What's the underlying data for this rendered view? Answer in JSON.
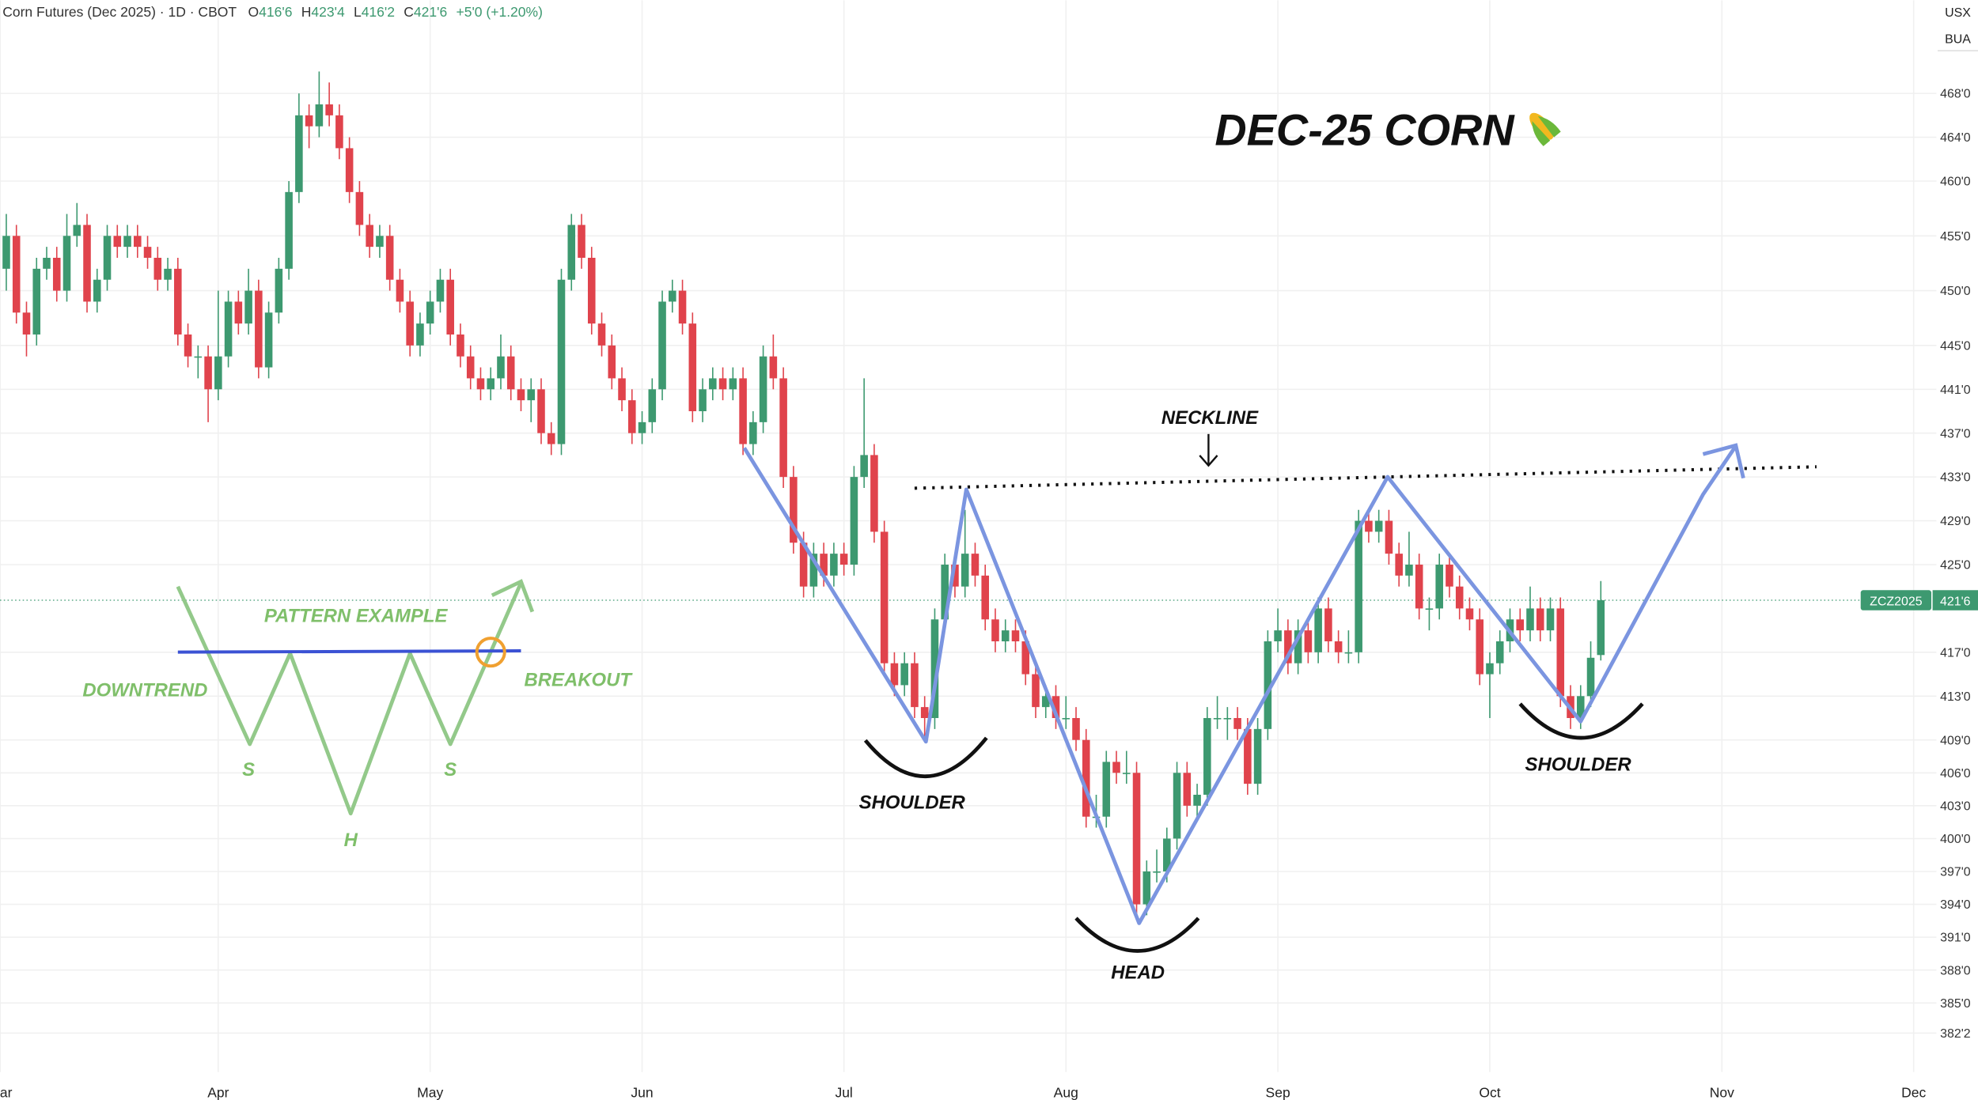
{
  "header": {
    "symbol": "Corn Futures (Dec 2025) · 1D · CBOT",
    "ohlc": [
      {
        "key": "O",
        "value": "416'6"
      },
      {
        "key": "H",
        "value": "423'4"
      },
      {
        "key": "L",
        "value": "416'2"
      },
      {
        "key": "C",
        "value": "421'6"
      }
    ],
    "change": "+5'0 (+1.20%)"
  },
  "axis_corner": {
    "currency": "USX",
    "unit": "BUA"
  },
  "price_tag": {
    "symbol": "ZCZ2025",
    "price": "421'6",
    "value": 421.75
  },
  "annotations": {
    "title": "DEC-25 CORN",
    "neckline": "NECKLINE",
    "left_shoulder": "SHOULDER",
    "head": "HEAD",
    "right_shoulder": "SHOULDER",
    "example": {
      "title": "PATTERN EXAMPLE",
      "downtrend": "DOWNTREND",
      "breakout": "BREAKOUT",
      "s1": "S",
      "h": "H",
      "s2": "S"
    }
  },
  "chart_data": {
    "type": "candlestick",
    "up_color": "#3d9970",
    "down_color": "#e0434c",
    "grid": true,
    "xlim": [
      -0.625,
      191.25
    ],
    "xticks": [
      {
        "value": -0.6,
        "label": "Mar"
      },
      {
        "value": 21,
        "label": "Apr"
      },
      {
        "value": 42,
        "label": "May"
      },
      {
        "value": 63,
        "label": "Jun"
      },
      {
        "value": 83,
        "label": "Jul"
      },
      {
        "value": 105,
        "label": "Aug"
      },
      {
        "value": 126,
        "label": "Sep"
      },
      {
        "value": 147,
        "label": "Oct"
      },
      {
        "value": 170,
        "label": "Nov"
      },
      {
        "value": 189,
        "label": "Dec"
      }
    ],
    "ylim": [
      378.7,
      476.5
    ],
    "yticks": [
      {
        "value": 468,
        "label": "468'0"
      },
      {
        "value": 464,
        "label": "464'0"
      },
      {
        "value": 460,
        "label": "460'0"
      },
      {
        "value": 455,
        "label": "455'0"
      },
      {
        "value": 450,
        "label": "450'0"
      },
      {
        "value": 445,
        "label": "445'0"
      },
      {
        "value": 441,
        "label": "441'0"
      },
      {
        "value": 437,
        "label": "437'0"
      },
      {
        "value": 433,
        "label": "433'0"
      },
      {
        "value": 429,
        "label": "429'0"
      },
      {
        "value": 425,
        "label": "425'0"
      },
      {
        "value": 417,
        "label": "417'0"
      },
      {
        "value": 413,
        "label": "413'0"
      },
      {
        "value": 409,
        "label": "409'0"
      },
      {
        "value": 406,
        "label": "406'0"
      },
      {
        "value": 403,
        "label": "403'0"
      },
      {
        "value": 400,
        "label": "400'0"
      },
      {
        "value": 397,
        "label": "397'0"
      },
      {
        "value": 394,
        "label": "394'0"
      },
      {
        "value": 391,
        "label": "391'0"
      },
      {
        "value": 388,
        "label": "388'0"
      },
      {
        "value": 385,
        "label": "385'0"
      },
      {
        "value": 382.25,
        "label": "382'2"
      }
    ],
    "candles": [
      [
        452,
        457,
        450,
        455
      ],
      [
        455,
        456,
        447,
        448
      ],
      [
        448,
        449,
        444,
        446
      ],
      [
        446,
        453,
        445,
        452
      ],
      [
        452,
        454,
        451,
        453
      ],
      [
        453,
        454,
        449,
        450
      ],
      [
        450,
        457,
        449,
        455
      ],
      [
        455,
        458,
        454,
        456
      ],
      [
        456,
        457,
        448,
        449
      ],
      [
        449,
        452,
        448,
        451
      ],
      [
        451,
        456,
        450,
        455
      ],
      [
        455,
        456,
        453,
        454
      ],
      [
        454,
        456,
        453,
        455
      ],
      [
        455,
        456,
        453,
        454
      ],
      [
        454,
        455,
        452,
        453
      ],
      [
        453,
        454,
        450,
        451
      ],
      [
        451,
        453,
        450,
        452
      ],
      [
        452,
        453,
        445,
        446
      ],
      [
        446,
        447,
        443,
        444
      ],
      [
        444,
        445,
        442,
        444
      ],
      [
        444,
        445,
        438,
        441
      ],
      [
        441,
        450,
        440,
        444
      ],
      [
        444,
        450,
        443,
        449
      ],
      [
        449,
        450,
        446,
        447
      ],
      [
        447,
        452,
        446,
        450
      ],
      [
        450,
        451,
        442,
        443
      ],
      [
        443,
        449,
        442,
        448
      ],
      [
        448,
        453,
        447,
        452
      ],
      [
        452,
        460,
        451,
        459
      ],
      [
        459,
        468,
        458,
        466
      ],
      [
        466,
        467,
        463,
        465
      ],
      [
        465,
        470,
        464,
        467
      ],
      [
        467,
        469,
        465,
        466
      ],
      [
        466,
        467,
        462,
        463
      ],
      [
        463,
        464,
        458,
        459
      ],
      [
        459,
        460,
        455,
        456
      ],
      [
        456,
        457,
        453,
        454
      ],
      [
        454,
        456,
        453,
        455
      ],
      [
        455,
        456,
        450,
        451
      ],
      [
        451,
        452,
        448,
        449
      ],
      [
        449,
        450,
        444,
        445
      ],
      [
        445,
        448,
        444,
        447
      ],
      [
        447,
        450,
        446,
        449
      ],
      [
        449,
        452,
        448,
        451
      ],
      [
        451,
        452,
        445,
        446
      ],
      [
        446,
        447,
        443,
        444
      ],
      [
        444,
        445,
        441,
        442
      ],
      [
        442,
        443,
        440,
        441
      ],
      [
        441,
        443,
        440,
        442
      ],
      [
        442,
        446,
        441,
        444
      ],
      [
        444,
        445,
        440,
        441
      ],
      [
        441,
        442,
        439,
        440
      ],
      [
        440,
        442,
        438,
        441
      ],
      [
        441,
        442,
        436,
        437
      ],
      [
        437,
        438,
        435,
        436
      ],
      [
        436,
        452,
        435,
        451
      ],
      [
        451,
        457,
        450,
        456
      ],
      [
        456,
        457,
        452,
        453
      ],
      [
        453,
        454,
        446,
        447
      ],
      [
        447,
        448,
        444,
        445
      ],
      [
        445,
        446,
        441,
        442
      ],
      [
        442,
        443,
        439,
        440
      ],
      [
        440,
        441,
        436,
        437
      ],
      [
        437,
        439,
        436,
        438
      ],
      [
        438,
        442,
        437,
        441
      ],
      [
        441,
        450,
        440,
        449
      ],
      [
        449,
        451,
        448,
        450
      ],
      [
        450,
        451,
        446,
        447
      ],
      [
        447,
        448,
        438,
        439
      ],
      [
        439,
        442,
        438,
        441
      ],
      [
        441,
        443,
        440,
        442
      ],
      [
        442,
        443,
        440,
        441
      ],
      [
        441,
        443,
        440,
        442
      ],
      [
        442,
        443,
        435,
        436
      ],
      [
        436,
        439,
        435,
        438
      ],
      [
        438,
        445,
        437,
        444
      ],
      [
        444,
        446,
        441,
        442
      ],
      [
        442,
        443,
        432,
        433
      ],
      [
        433,
        434,
        426,
        427
      ],
      [
        427,
        428,
        422,
        423
      ],
      [
        423,
        427,
        422,
        426
      ],
      [
        426,
        427,
        423,
        424
      ],
      [
        424,
        427,
        423,
        426
      ],
      [
        426,
        427,
        424,
        425
      ],
      [
        425,
        434,
        424,
        433
      ],
      [
        433,
        442,
        432,
        435
      ],
      [
        435,
        436,
        427,
        428
      ],
      [
        428,
        429,
        415,
        416
      ],
      [
        416,
        417,
        413,
        414
      ],
      [
        414,
        417,
        413,
        416
      ],
      [
        416,
        417,
        411,
        412
      ],
      [
        412,
        413,
        409,
        411
      ],
      [
        411,
        421,
        410,
        420
      ],
      [
        420,
        426,
        419,
        425
      ],
      [
        425,
        426,
        422,
        423
      ],
      [
        423,
        430,
        422,
        426
      ],
      [
        426,
        427,
        423,
        424
      ],
      [
        424,
        425,
        419,
        420
      ],
      [
        420,
        421,
        417,
        418
      ],
      [
        418,
        420,
        417,
        419
      ],
      [
        419,
        420,
        417,
        418
      ],
      [
        418,
        419,
        414,
        415
      ],
      [
        415,
        416,
        411,
        412
      ],
      [
        412,
        414,
        411,
        413
      ],
      [
        413,
        414,
        410,
        411
      ],
      [
        411,
        413,
        410,
        411
      ],
      [
        411,
        412,
        408,
        409
      ],
      [
        409,
        410,
        401,
        402
      ],
      [
        402,
        404,
        401,
        402
      ],
      [
        402,
        408,
        401,
        407
      ],
      [
        407,
        408,
        405,
        406
      ],
      [
        406,
        408,
        405,
        406
      ],
      [
        406,
        407,
        393,
        394
      ],
      [
        394,
        398,
        393,
        397
      ],
      [
        397,
        399,
        396,
        397
      ],
      [
        397,
        401,
        396,
        400
      ],
      [
        400,
        407,
        399,
        406
      ],
      [
        406,
        407,
        402,
        403
      ],
      [
        403,
        405,
        402,
        404
      ],
      [
        404,
        412,
        403,
        411
      ],
      [
        411,
        413,
        410,
        411
      ],
      [
        411,
        412,
        409,
        411
      ],
      [
        411,
        412,
        409,
        410
      ],
      [
        410,
        411,
        404,
        405
      ],
      [
        405,
        411,
        404,
        410
      ],
      [
        410,
        419,
        409,
        418
      ],
      [
        418,
        421,
        417,
        419
      ],
      [
        419,
        420,
        415,
        416
      ],
      [
        416,
        420,
        415,
        419
      ],
      [
        419,
        420,
        416,
        417
      ],
      [
        417,
        422,
        416,
        421
      ],
      [
        421,
        422,
        417,
        418
      ],
      [
        418,
        419,
        416,
        417
      ],
      [
        417,
        419,
        416,
        417
      ],
      [
        417,
        430,
        416,
        429
      ],
      [
        429,
        430,
        427,
        428
      ],
      [
        428,
        430,
        427,
        429
      ],
      [
        429,
        430,
        425,
        426
      ],
      [
        426,
        427,
        423,
        424
      ],
      [
        424,
        428,
        423,
        425
      ],
      [
        425,
        426,
        420,
        421
      ],
      [
        421,
        422,
        419,
        421
      ],
      [
        421,
        426,
        420,
        425
      ],
      [
        425,
        426,
        422,
        423
      ],
      [
        423,
        424,
        420,
        421
      ],
      [
        421,
        422,
        419,
        420
      ],
      [
        420,
        421,
        414,
        415
      ],
      [
        415,
        417,
        411,
        416
      ],
      [
        416,
        419,
        415,
        418
      ],
      [
        418,
        421,
        417,
        420
      ],
      [
        420,
        421,
        418,
        419
      ],
      [
        419,
        423,
        418,
        421
      ],
      [
        421,
        422,
        418,
        419
      ],
      [
        419,
        422,
        418,
        421
      ],
      [
        421,
        422,
        412,
        413
      ],
      [
        413,
        414,
        410,
        411
      ],
      [
        411,
        414,
        410,
        413
      ],
      [
        413,
        418,
        412,
        416.5
      ],
      [
        416.75,
        423.5,
        416.25,
        421.75
      ]
    ]
  }
}
